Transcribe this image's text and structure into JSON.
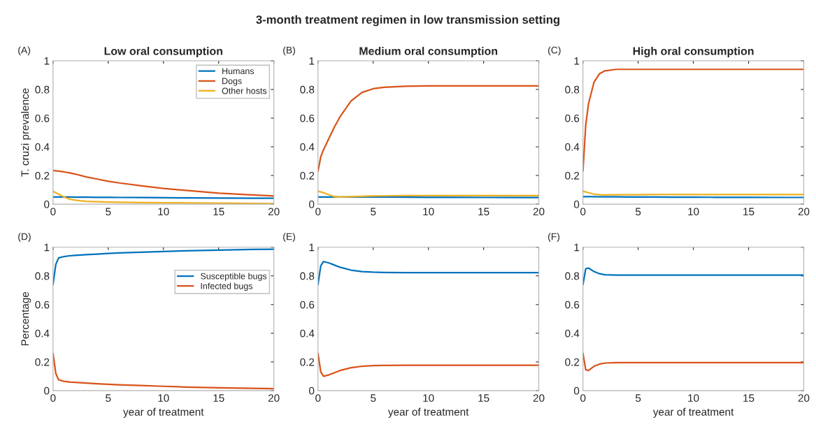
{
  "chart_data": [
    {
      "type": "line",
      "title": "Low oral consumption",
      "ylabel": "T. cruzi prevalence",
      "annotations": [
        "(A)",
        "3-month treatment regimen in low transmission setting"
      ],
      "x": [
        0,
        0.25,
        0.5,
        1,
        1.5,
        2,
        3,
        4,
        5,
        6,
        8,
        10,
        12,
        15,
        18,
        20
      ],
      "xlim": [
        0,
        20
      ],
      "xticks": [
        0,
        5,
        10,
        15,
        20
      ],
      "ylim": [
        0,
        1
      ],
      "yticks": [
        0,
        0.2,
        0.4,
        0.6,
        0.8,
        1
      ],
      "legend": "top right",
      "grid": false,
      "tick_labels": "xy",
      "series": [
        {
          "name": "Humans",
          "color": "#0072bd",
          "values": [
            0.05,
            0.05,
            0.05,
            0.05,
            0.05,
            0.049,
            0.049,
            0.048,
            0.048,
            0.047,
            0.046,
            0.045,
            0.044,
            0.043,
            0.042,
            0.041
          ]
        },
        {
          "name": "Dogs",
          "color": "#d95319",
          "values": [
            0.235,
            0.233,
            0.23,
            0.225,
            0.218,
            0.21,
            0.19,
            0.175,
            0.16,
            0.148,
            0.128,
            0.11,
            0.096,
            0.077,
            0.065,
            0.057
          ]
        },
        {
          "name": "Other hosts",
          "color": "#edb120",
          "values": [
            0.09,
            0.08,
            0.07,
            0.05,
            0.035,
            0.028,
            0.02,
            0.017,
            0.015,
            0.013,
            0.011,
            0.01,
            0.009,
            0.007,
            0.005,
            0.004
          ]
        }
      ]
    },
    {
      "type": "line",
      "title": "Medium oral consumption",
      "annotations": [
        "(B)"
      ],
      "x": [
        0,
        0.25,
        0.5,
        1,
        1.5,
        2,
        3,
        4,
        5,
        6,
        8,
        10,
        12,
        15,
        18,
        20
      ],
      "xlim": [
        0,
        20
      ],
      "xticks": [
        0,
        5,
        10,
        15,
        20
      ],
      "ylim": [
        0,
        1
      ],
      "yticks": [
        0,
        0.2,
        0.4,
        0.6,
        0.8,
        1
      ],
      "grid": false,
      "series": [
        {
          "color": "#0072bd",
          "x": [
            0,
            0.25,
            0.5,
            1,
            1.5,
            3,
            4,
            5,
            6,
            8,
            10,
            12,
            15,
            18,
            20
          ],
          "values": [
            0.05,
            0.05,
            0.05,
            0.05,
            0.05,
            0.05,
            0.05,
            0.05,
            0.05,
            0.049,
            0.048,
            0.048,
            0.047,
            0.046,
            0.046
          ]
        },
        {
          "color": "#d95319",
          "values": [
            0.23,
            0.33,
            0.38,
            0.46,
            0.54,
            0.61,
            0.72,
            0.78,
            0.805,
            0.815,
            0.822,
            0.825,
            0.825,
            0.825,
            0.825,
            0.825
          ]
        },
        {
          "color": "#edb120",
          "values": [
            0.09,
            0.085,
            0.08,
            0.065,
            0.052,
            0.05,
            0.052,
            0.055,
            0.057,
            0.058,
            0.06,
            0.06,
            0.06,
            0.06,
            0.06,
            0.06
          ]
        }
      ]
    },
    {
      "type": "line",
      "title": "High oral consumption",
      "annotations": [
        "(C)"
      ],
      "x": [
        0,
        0.25,
        0.5,
        1,
        1.5,
        2,
        3,
        4,
        5,
        6,
        8,
        10,
        12,
        15,
        18,
        20
      ],
      "xlim": [
        0,
        20
      ],
      "xticks": [
        0,
        5,
        10,
        15,
        20
      ],
      "ylim": [
        0,
        1
      ],
      "yticks": [
        0,
        0.2,
        0.4,
        0.6,
        0.8,
        1
      ],
      "grid": false,
      "series": [
        {
          "color": "#0072bd",
          "values": [
            0.052,
            0.052,
            0.052,
            0.052,
            0.051,
            0.051,
            0.051,
            0.05,
            0.05,
            0.05,
            0.049,
            0.049,
            0.048,
            0.048,
            0.047,
            0.047
          ]
        },
        {
          "color": "#d95319",
          "values": [
            0.23,
            0.55,
            0.7,
            0.85,
            0.91,
            0.93,
            0.94,
            0.94,
            0.94,
            0.94,
            0.94,
            0.94,
            0.94,
            0.94,
            0.94,
            0.94
          ]
        },
        {
          "color": "#edb120",
          "values": [
            0.09,
            0.085,
            0.08,
            0.07,
            0.066,
            0.065,
            0.066,
            0.066,
            0.066,
            0.067,
            0.067,
            0.067,
            0.067,
            0.067,
            0.067,
            0.067
          ]
        }
      ]
    },
    {
      "type": "line",
      "xlabel": "year of treatment",
      "ylabel": "Percentage",
      "annotations": [
        "(D)"
      ],
      "x": [
        0,
        0.25,
        0.5,
        1,
        1.5,
        2,
        3,
        4,
        5,
        6,
        8,
        10,
        12,
        15,
        18,
        20
      ],
      "xlim": [
        0,
        20
      ],
      "xticks": [
        0,
        5,
        10,
        15,
        20
      ],
      "ylim": [
        0,
        1
      ],
      "yticks": [
        0,
        0.2,
        0.4,
        0.6,
        0.8,
        1
      ],
      "legend": "top right",
      "grid": false,
      "series": [
        {
          "name": "Susceptible bugs",
          "color": "#0072bd",
          "values": [
            0.74,
            0.88,
            0.925,
            0.935,
            0.94,
            0.943,
            0.948,
            0.952,
            0.956,
            0.96,
            0.965,
            0.97,
            0.975,
            0.98,
            0.984,
            0.986
          ]
        },
        {
          "name": "Infected bugs",
          "color": "#d95319",
          "values": [
            0.26,
            0.12,
            0.075,
            0.065,
            0.06,
            0.057,
            0.052,
            0.048,
            0.044,
            0.04,
            0.035,
            0.03,
            0.025,
            0.02,
            0.016,
            0.014
          ]
        }
      ]
    },
    {
      "type": "line",
      "xlabel": "year of treatment",
      "annotations": [
        "(E)"
      ],
      "x": [
        0,
        0.25,
        0.5,
        1,
        1.5,
        2,
        3,
        4,
        5,
        6,
        8,
        10,
        12,
        15,
        18,
        20
      ],
      "xlim": [
        0,
        20
      ],
      "xticks": [
        0,
        5,
        10,
        15,
        20
      ],
      "ylim": [
        0,
        1
      ],
      "yticks": [
        0,
        0.2,
        0.4,
        0.6,
        0.8,
        1
      ],
      "grid": false,
      "series": [
        {
          "color": "#0072bd",
          "values": [
            0.74,
            0.87,
            0.9,
            0.89,
            0.875,
            0.86,
            0.84,
            0.83,
            0.826,
            0.824,
            0.823,
            0.823,
            0.823,
            0.823,
            0.823,
            0.823
          ]
        },
        {
          "color": "#d95319",
          "values": [
            0.26,
            0.13,
            0.1,
            0.11,
            0.125,
            0.14,
            0.16,
            0.17,
            0.174,
            0.176,
            0.177,
            0.177,
            0.177,
            0.177,
            0.177,
            0.177
          ]
        }
      ]
    },
    {
      "type": "line",
      "xlabel": "year of treatment",
      "annotations": [
        "(F)"
      ],
      "x": [
        0,
        0.25,
        0.5,
        1,
        1.5,
        2,
        3,
        4,
        5,
        6,
        8,
        10,
        12,
        15,
        18,
        20
      ],
      "xlim": [
        0,
        20
      ],
      "xticks": [
        0,
        5,
        10,
        15,
        20
      ],
      "ylim": [
        0,
        1
      ],
      "yticks": [
        0,
        0.2,
        0.4,
        0.6,
        0.8,
        1
      ],
      "grid": false,
      "series": [
        {
          "color": "#0072bd",
          "values": [
            0.74,
            0.85,
            0.855,
            0.83,
            0.815,
            0.808,
            0.805,
            0.805,
            0.805,
            0.805,
            0.805,
            0.805,
            0.805,
            0.805,
            0.805,
            0.805
          ]
        },
        {
          "color": "#d95319",
          "values": [
            0.26,
            0.145,
            0.14,
            0.17,
            0.185,
            0.192,
            0.195,
            0.195,
            0.195,
            0.195,
            0.195,
            0.195,
            0.195,
            0.195,
            0.195,
            0.195
          ]
        }
      ]
    }
  ]
}
